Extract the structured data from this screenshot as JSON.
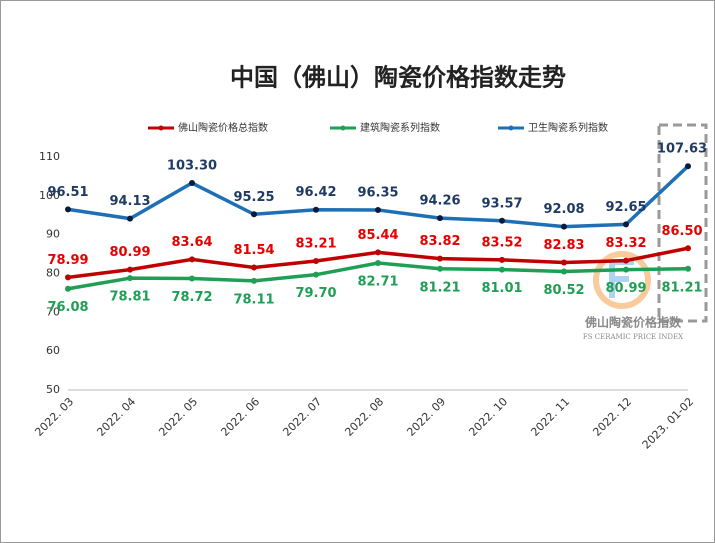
{
  "chart_data": {
    "type": "line",
    "title": "中国（佛山）陶瓷价格指数走势",
    "categories": [
      "2022. 03",
      "2022. 04",
      "2022. 05",
      "2022. 06",
      "2022. 07",
      "2022. 08",
      "2022. 09",
      "2022. 10",
      "2022. 11",
      "2022. 12",
      "2023. 01-02"
    ],
    "series": [
      {
        "name": "佛山陶瓷价格总指数",
        "color": "#c00000",
        "label_color": "#e60000",
        "label_pos": "above",
        "values": [
          78.99,
          80.99,
          83.64,
          81.54,
          83.21,
          85.44,
          83.82,
          83.52,
          82.83,
          83.32,
          86.5
        ],
        "value_labels": [
          "78.99",
          "80.99",
          "83.64",
          "81.54",
          "83.21",
          "85.44",
          "83.82",
          "83.52",
          "82.83",
          "83.32",
          "86.50"
        ]
      },
      {
        "name": "建筑陶瓷系列指数",
        "color": "#1f9e55",
        "label_color": "#1f9e55",
        "label_pos": "below",
        "values": [
          76.08,
          78.81,
          78.72,
          78.11,
          79.7,
          82.71,
          81.21,
          81.01,
          80.52,
          80.99,
          81.21
        ],
        "value_labels": [
          "76.08",
          "78.81",
          "78.72",
          "78.11",
          "79.70",
          "82.71",
          "81.21",
          "81.01",
          "80.52",
          "80.99",
          "81.21"
        ]
      },
      {
        "name": "卫生陶瓷系列指数",
        "color": "#1f6fb5",
        "label_color": "#1f3a64",
        "label_pos": "above",
        "values": [
          96.51,
          94.13,
          103.3,
          95.25,
          96.42,
          96.35,
          94.26,
          93.57,
          92.08,
          92.65,
          107.63
        ],
        "value_labels": [
          "96.51",
          "94.13",
          "103.30",
          "95.25",
          "96.42",
          "96.35",
          "94.26",
          "93.57",
          "92.08",
          "92.65",
          "107.63"
        ]
      }
    ],
    "ylim": [
      50,
      110
    ],
    "yticks": [
      50,
      60,
      70,
      80,
      90,
      100,
      110
    ],
    "grid": false,
    "legend": "top",
    "watermark": {
      "title": "佛山陶瓷价格指数",
      "subtitle": "FS CERAMIC PRICE INDEX"
    }
  }
}
